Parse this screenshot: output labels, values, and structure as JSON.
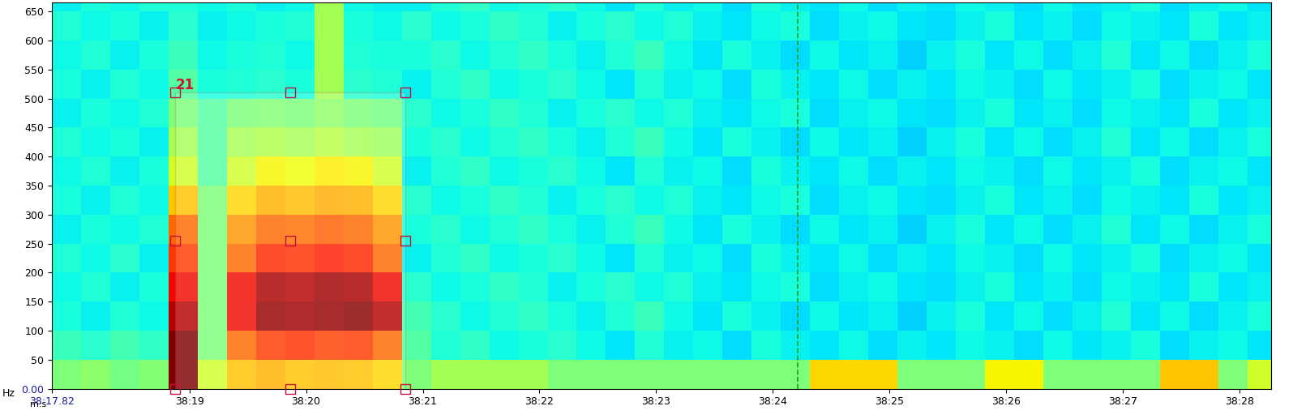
{
  "chart_data": {
    "type": "heatmap",
    "x_label": "m:s",
    "y_label": "Hz",
    "x_edges": [
      17.82,
      18.07,
      18.32,
      18.57,
      18.82,
      19.07,
      19.32,
      19.57,
      19.82,
      20.07,
      20.32,
      20.57,
      20.82,
      21.07,
      21.32,
      21.57,
      21.82,
      22.07,
      22.32,
      22.57,
      22.82,
      23.07,
      23.32,
      23.57,
      23.82,
      24.07,
      24.32,
      24.57,
      24.82,
      25.07,
      25.32,
      25.57,
      25.82,
      26.07,
      26.32,
      26.57,
      26.82,
      27.07,
      27.32,
      27.57,
      27.82,
      28.07,
      28.32
    ],
    "y_edges": [
      0,
      50,
      100,
      150,
      200,
      250,
      300,
      350,
      400,
      450,
      500,
      550,
      600,
      650,
      700
    ],
    "clim": [
      0,
      10
    ],
    "cells": [
      [
        5,
        5.2,
        4.9,
        5.1,
        10,
        6,
        7,
        7.2,
        7,
        7.1,
        7,
        6.8,
        5,
        5.5,
        5.5,
        5.5,
        5.5,
        5,
        5,
        5,
        5,
        5,
        5,
        5,
        5,
        5,
        6.8,
        6.8,
        6.8,
        5,
        5,
        5,
        6.5,
        6.5,
        5,
        5,
        5,
        5,
        7,
        7,
        5,
        6
      ],
      [
        4.2,
        4.0,
        4.3,
        4.1,
        10,
        5,
        8,
        8.5,
        8.6,
        8.4,
        8.5,
        8,
        4.5,
        3.9,
        4.1,
        3.7,
        3.8,
        4.0,
        3.7,
        3.5,
        3.9,
        3.6,
        3.7,
        3.4,
        3.8,
        3.6,
        3.5,
        3.7,
        3.4,
        3.6,
        3.5,
        3.7,
        3.6,
        3.4,
        3.7,
        3.5,
        3.6,
        3.8,
        3.4,
        3.6,
        3.7,
        3.5
      ],
      [
        3.8,
        3.6,
        3.9,
        3.7,
        9.5,
        5,
        9,
        9.8,
        9.7,
        9.8,
        9.9,
        9.5,
        4.3,
        4.0,
        3.7,
        3.9,
        4.1,
        3.8,
        3.6,
        3.9,
        4.2,
        3.7,
        3.5,
        3.8,
        3.6,
        3.4,
        3.7,
        3.5,
        3.6,
        3.3,
        3.6,
        3.8,
        3.5,
        3.7,
        3.4,
        3.6,
        3.9,
        3.5,
        3.7,
        3.4,
        3.6,
        3.8
      ],
      [
        3.7,
        3.9,
        3.6,
        3.8,
        9,
        5,
        9,
        9.6,
        9.5,
        9.7,
        9.6,
        9,
        4.0,
        3.7,
        3.8,
        4.1,
        3.9,
        3.6,
        3.8,
        4.0,
        3.7,
        3.9,
        3.6,
        3.5,
        3.7,
        3.8,
        3.4,
        3.6,
        3.7,
        3.5,
        3.4,
        3.6,
        3.8,
        3.5,
        3.6,
        3.4,
        3.7,
        3.6,
        3.5,
        3.8,
        3.5,
        3.6
      ],
      [
        3.9,
        3.7,
        4.0,
        3.6,
        8.5,
        5,
        8,
        8.7,
        8.6,
        8.8,
        8.7,
        8,
        3.6,
        3.9,
        4.1,
        3.7,
        3.8,
        4.0,
        3.7,
        3.5,
        3.9,
        3.6,
        3.7,
        3.4,
        3.8,
        3.6,
        3.5,
        3.7,
        3.4,
        3.6,
        3.5,
        3.7,
        3.6,
        3.4,
        3.7,
        3.5,
        3.6,
        3.8,
        3.4,
        3.6,
        3.7,
        3.5
      ],
      [
        3.6,
        3.8,
        3.7,
        3.9,
        8,
        5,
        7.5,
        8,
        7.9,
        8.1,
        8,
        7.5,
        3.8,
        4.0,
        3.7,
        3.9,
        4.1,
        3.8,
        3.6,
        3.9,
        4.2,
        3.7,
        3.5,
        3.8,
        3.6,
        3.4,
        3.7,
        3.5,
        3.6,
        3.3,
        3.6,
        3.8,
        3.5,
        3.7,
        3.4,
        3.6,
        3.9,
        3.5,
        3.7,
        3.4,
        3.6,
        3.8
      ],
      [
        3.8,
        3.6,
        3.9,
        3.7,
        7,
        5,
        6.8,
        7.2,
        7.1,
        7.3,
        7.2,
        6.8,
        4.0,
        3.7,
        3.8,
        4.1,
        3.9,
        3.6,
        3.8,
        4.0,
        3.7,
        3.9,
        3.6,
        3.5,
        3.7,
        3.8,
        3.4,
        3.6,
        3.7,
        3.5,
        3.4,
        3.6,
        3.8,
        3.5,
        3.6,
        3.4,
        3.7,
        3.6,
        3.5,
        3.8,
        3.5,
        3.6
      ],
      [
        3.7,
        3.9,
        3.6,
        3.8,
        6,
        4.5,
        6,
        6.5,
        6.4,
        6.6,
        6.5,
        6,
        3.6,
        3.9,
        4.1,
        3.7,
        3.8,
        4.0,
        3.7,
        3.5,
        3.9,
        3.6,
        3.7,
        3.4,
        3.8,
        3.6,
        3.5,
        3.7,
        3.4,
        3.6,
        3.5,
        3.7,
        3.6,
        3.4,
        3.7,
        3.5,
        3.6,
        3.8,
        3.4,
        3.6,
        3.7,
        3.5
      ],
      [
        3.9,
        3.7,
        3.8,
        3.6,
        5.5,
        4.5,
        5.5,
        5.6,
        5.5,
        5.7,
        5.5,
        5.4,
        3.8,
        4.0,
        3.7,
        3.9,
        4.1,
        3.8,
        3.6,
        3.9,
        4.2,
        3.7,
        3.5,
        3.8,
        3.6,
        3.4,
        3.7,
        3.5,
        3.6,
        3.3,
        3.6,
        3.8,
        3.5,
        3.7,
        3.4,
        3.6,
        3.9,
        3.5,
        3.7,
        3.4,
        3.6,
        3.8
      ],
      [
        3.6,
        3.8,
        3.7,
        3.9,
        5,
        4.5,
        5,
        5.1,
        5,
        5.2,
        5,
        4.9,
        4.0,
        3.7,
        3.8,
        4.1,
        3.9,
        3.6,
        3.8,
        4.0,
        3.7,
        3.9,
        3.6,
        3.5,
        3.7,
        3.8,
        3.4,
        3.6,
        3.7,
        3.5,
        3.4,
        3.6,
        3.8,
        3.5,
        3.6,
        3.4,
        3.7,
        3.6,
        3.5,
        3.8,
        3.5,
        3.6
      ],
      [
        3.8,
        3.6,
        3.9,
        3.7,
        4.5,
        3.8,
        3.9,
        4.0,
        3.8,
        5.5,
        4.0,
        3.9,
        3.6,
        3.9,
        4.1,
        3.7,
        3.8,
        4.0,
        3.7,
        3.5,
        3.9,
        3.6,
        3.7,
        3.4,
        3.8,
        3.6,
        3.5,
        3.7,
        3.4,
        3.6,
        3.5,
        3.7,
        3.6,
        3.4,
        3.7,
        3.5,
        3.6,
        3.8,
        3.4,
        3.6,
        3.7,
        3.5
      ],
      [
        3.7,
        3.9,
        3.6,
        3.8,
        4.2,
        3.7,
        3.8,
        3.9,
        3.7,
        5.5,
        3.9,
        3.8,
        3.8,
        4.0,
        3.7,
        3.9,
        4.1,
        3.8,
        3.6,
        3.9,
        4.2,
        3.7,
        3.5,
        3.8,
        3.6,
        3.4,
        3.7,
        3.5,
        3.6,
        3.3,
        3.6,
        3.8,
        3.5,
        3.7,
        3.4,
        3.6,
        3.9,
        3.5,
        3.7,
        3.4,
        3.6,
        3.8
      ],
      [
        3.9,
        3.7,
        3.8,
        3.6,
        4.0,
        3.6,
        3.7,
        3.8,
        3.9,
        5.5,
        3.8,
        3.7,
        4.0,
        3.7,
        3.8,
        4.1,
        3.9,
        3.6,
        3.8,
        4.0,
        3.7,
        3.9,
        3.6,
        3.5,
        3.7,
        3.8,
        3.4,
        3.6,
        3.7,
        3.5,
        3.4,
        3.6,
        3.8,
        3.5,
        3.6,
        3.4,
        3.7,
        3.6,
        3.5,
        3.8,
        3.5,
        3.6
      ],
      [
        3.6,
        3.8,
        3.7,
        3.9,
        3.9,
        3.7,
        3.8,
        3.6,
        3.7,
        5.5,
        3.7,
        3.6,
        3.6,
        3.9,
        4.1,
        3.7,
        3.8,
        4.0,
        3.7,
        3.5,
        3.9,
        3.6,
        3.7,
        3.4,
        3.8,
        3.6,
        3.5,
        3.7,
        3.4,
        3.6,
        3.5,
        3.7,
        3.6,
        3.4,
        3.7,
        3.5,
        3.6,
        3.8,
        3.4,
        3.6,
        3.7,
        3.5
      ]
    ],
    "xlim": [
      17.82,
      28.27
    ],
    "ylim": [
      0,
      666
    ],
    "xticks": [
      {
        "value": 17.82,
        "label": "38:17.82"
      },
      {
        "value": 19,
        "label": "38:19"
      },
      {
        "value": 20,
        "label": "38:20"
      },
      {
        "value": 21,
        "label": "38:21"
      },
      {
        "value": 22,
        "label": "38:22"
      },
      {
        "value": 23,
        "label": "38:23"
      },
      {
        "value": 24,
        "label": "38:24"
      },
      {
        "value": 25,
        "label": "38:25"
      },
      {
        "value": 26,
        "label": "38:26"
      },
      {
        "value": 27,
        "label": "38:27"
      },
      {
        "value": 28,
        "label": "38:28"
      }
    ],
    "yticks": [
      {
        "value": 0,
        "label": "0.00"
      },
      50,
      100,
      150,
      200,
      250,
      300,
      350,
      400,
      450,
      500,
      550,
      600,
      650
    ],
    "selection": {
      "label": "21",
      "x": [
        18.88,
        20.85
      ],
      "y": [
        0,
        510
      ]
    },
    "cursor": 24.21
  }
}
